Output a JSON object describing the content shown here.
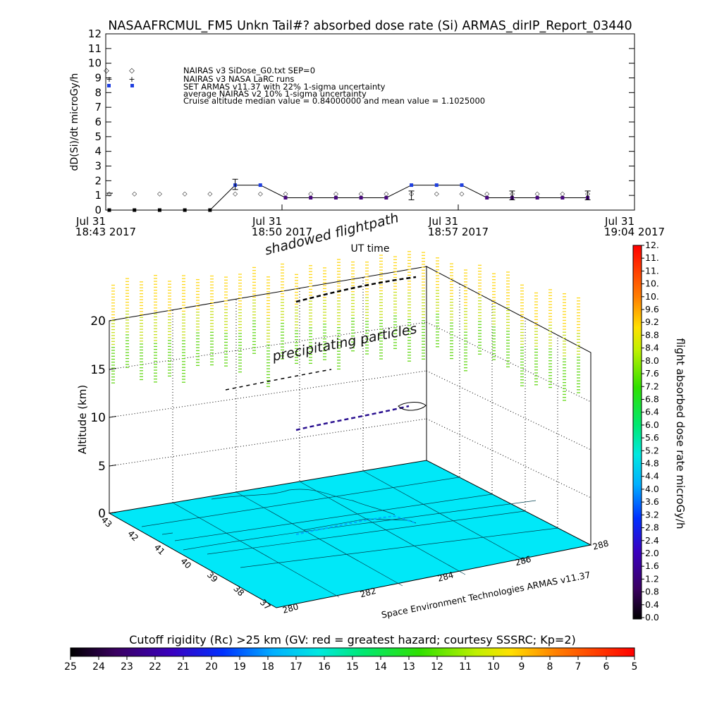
{
  "title": "NASAAFRCMUL_FM5 Unkn Tail#? absorbed dose rate (Si) ARMAS_dirIP_Report_03440",
  "top_chart": {
    "ylabel": "dD(Si)/dt microGy/h",
    "y_ticks": [
      "0",
      "1",
      "2",
      "3",
      "4",
      "5",
      "6",
      "7",
      "8",
      "9",
      "10",
      "11",
      "12"
    ],
    "x_ticks": [
      {
        "line1": "Jul 31",
        "line2": "18:43 2017"
      },
      {
        "line1": "Jul 31",
        "line2": "18:50 2017"
      },
      {
        "line1": "Jul 31",
        "line2": "18:57 2017"
      },
      {
        "line1": "Jul 31",
        "line2": "19:04 2017"
      }
    ],
    "xlabel": "UT time",
    "legend": [
      {
        "label": "NAIRAS v3 SiDose_G0.txt SEP=0"
      },
      {
        "label": "NAIRAS v3 NASA LaRC runs"
      },
      {
        "label": "SET ARMAS v11.37 with 22% 1-sigma uncertainty"
      },
      {
        "label": "average NAIRAS v2 10% 1-sigma uncertainty"
      },
      {
        "label": "Cruise altitude median value = 0.84000000 and mean value = 1.1025000"
      }
    ]
  },
  "chart_data": [
    {
      "type": "line",
      "title": "NASAAFRCMUL_FM5 Unkn Tail#? absorbed dose rate (Si) ARMAS_dirIP_Report_03440",
      "xlabel": "UT time",
      "ylabel": "dD(Si)/dt microGy/h",
      "ylim": [
        0,
        12
      ],
      "x_ticks": [
        "18:43",
        "18:50",
        "18:57",
        "19:04"
      ],
      "series": [
        {
          "name": "SET ARMAS v11.37 with 22% 1-sigma uncertainty",
          "x": [
            "18:43",
            "18:44",
            "18:45",
            "18:46",
            "18:47",
            "18:48",
            "18:49",
            "18:50",
            "18:51",
            "18:52",
            "18:53",
            "18:54",
            "18:55",
            "18:56",
            "18:57",
            "18:58",
            "18:59",
            "19:00",
            "19:01",
            "19:02"
          ],
          "values": [
            0,
            0,
            0,
            0,
            0,
            1.7,
            1.7,
            0.84,
            0.84,
            0.84,
            0.84,
            0.84,
            1.7,
            1.7,
            1.7,
            0.84,
            0.84,
            0.84,
            0.84,
            0.84
          ]
        },
        {
          "name": "NAIRAS v3 SiDose_G0.txt SEP=0",
          "x": [
            "18:43",
            "18:44",
            "18:45",
            "18:46",
            "18:47",
            "18:48",
            "18:49",
            "18:50",
            "18:51",
            "18:52",
            "18:53",
            "18:54",
            "18:55",
            "18:56",
            "18:57",
            "18:58",
            "18:59",
            "19:00",
            "19:01",
            "19:02"
          ],
          "values": [
            1.15,
            1.15,
            1.15,
            1.15,
            1.15,
            1.15,
            1.15,
            1.15,
            1.15,
            1.15,
            1.15,
            1.15,
            1.15,
            1.15,
            1.15,
            1.15,
            1.15,
            1.15,
            1.15,
            1.15
          ]
        }
      ]
    },
    {
      "type": "scatter",
      "annotations": [
        "shadowed flightpath",
        "precipitating particles"
      ],
      "zlabel": "Altitude (km)",
      "z_ticks": [
        "0",
        "5",
        "10",
        "15",
        "20"
      ],
      "x_ticks": [
        "280",
        "282",
        "284",
        "286",
        "288"
      ],
      "y_ticks": [
        "37",
        "38",
        "39",
        "40",
        "41",
        "42",
        "43"
      ],
      "footer": "Space Environment Technologies ARMAS v11.37"
    }
  ],
  "colorbar": {
    "label": "flight absorbed dose rate microGy/h",
    "ticks": [
      "0.0",
      "0.4",
      "0.8",
      "1.2",
      "1.6",
      "2.0",
      "2.4",
      "2.8",
      "3.2",
      "3.6",
      "4.0",
      "4.4",
      "4.8",
      "5.2",
      "5.6",
      "6.0",
      "6.4",
      "6.8",
      "7.2",
      "7.6",
      "8.0",
      "8.4",
      "8.8",
      "9.2",
      "9.6",
      "10.",
      "10.",
      "11.",
      "11.",
      "12."
    ]
  },
  "rc_bar": {
    "title": "Cutoff rigidity (Rc) >25 km (GV: red = greatest hazard; courtesy SSSRC; Kp=2)",
    "ticks": [
      "25",
      "24",
      "23",
      "22",
      "21",
      "20",
      "19",
      "18",
      "17",
      "16",
      "15",
      "14",
      "13",
      "12",
      "11",
      "10",
      "9",
      "8",
      "7",
      "6",
      "5"
    ]
  }
}
